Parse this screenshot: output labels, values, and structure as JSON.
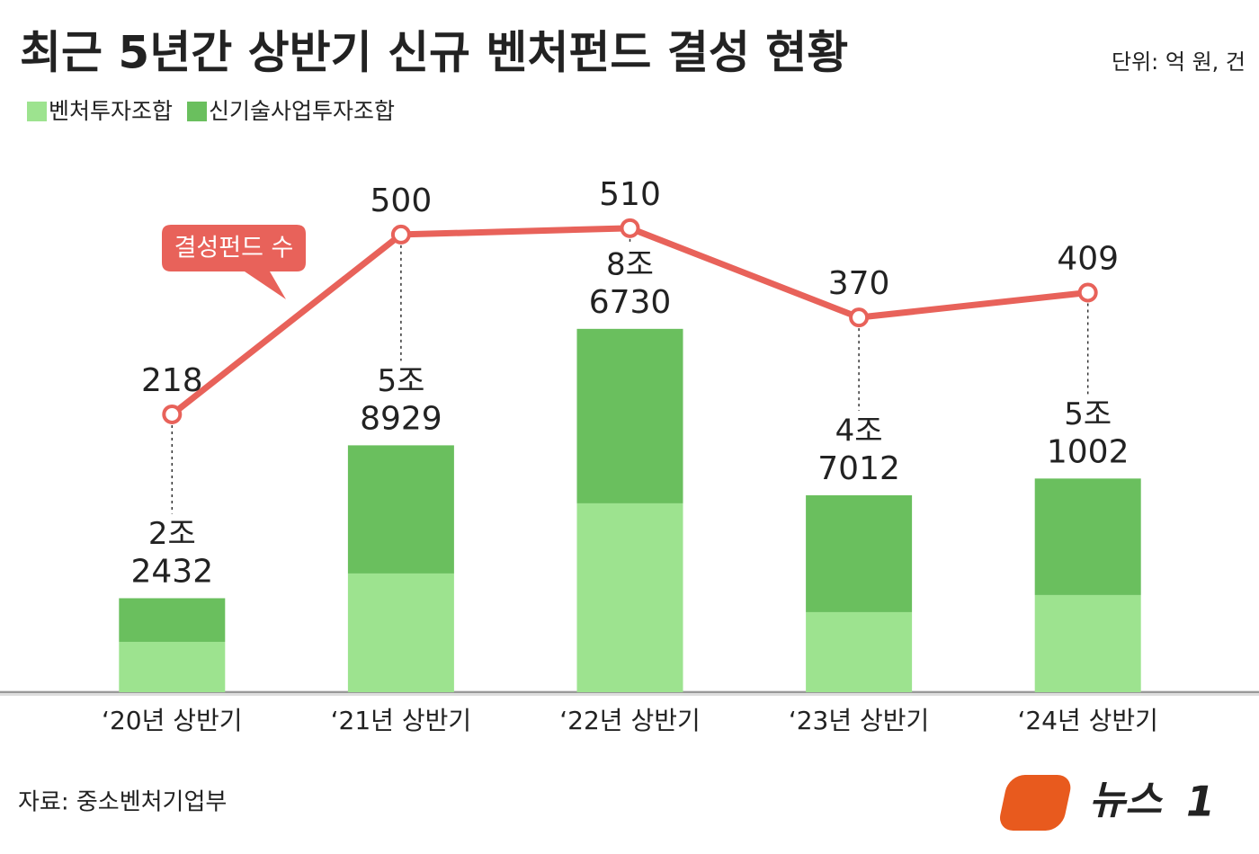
{
  "chart_data": {
    "type": "bar",
    "stacked": true,
    "title": "최근 5년간 상반기 신규 벤처펀드 결성 현황",
    "unit": "단위: 억 원, 건",
    "source": "자료: 중소벤처기업부",
    "logo": [
      "뉴스",
      "1"
    ],
    "categories": [
      "‘20년 상반기",
      "‘21년 상반기",
      "‘22년 상반기",
      "‘23년 상반기",
      "‘24년 상반기"
    ],
    "series": [
      {
        "name": "벤처투자조합",
        "color": "#9de38f",
        "values": [
          12020,
          28340,
          45080,
          19110,
          23190
        ]
      },
      {
        "name": "신기술사업투자조합",
        "color": "#6abf5e",
        "values": [
          10412,
          30589,
          41650,
          27902,
          27812
        ]
      },
      {
        "name": "결성펀드 수",
        "type": "line",
        "axis": "y2",
        "color": "#e8625a",
        "values": [
          218,
          500,
          510,
          370,
          409
        ]
      }
    ],
    "totals": [
      22432,
      58929,
      86730,
      47012,
      51002
    ],
    "total_labels": [
      [
        "2조",
        "2432"
      ],
      [
        "5조",
        "8929"
      ],
      [
        "8조",
        "6730"
      ],
      [
        "4조",
        "7012"
      ],
      [
        "5조",
        "1002"
      ]
    ],
    "ylim": [
      0,
      100000
    ],
    "y2lim": [
      0,
      600
    ],
    "grid": false
  }
}
